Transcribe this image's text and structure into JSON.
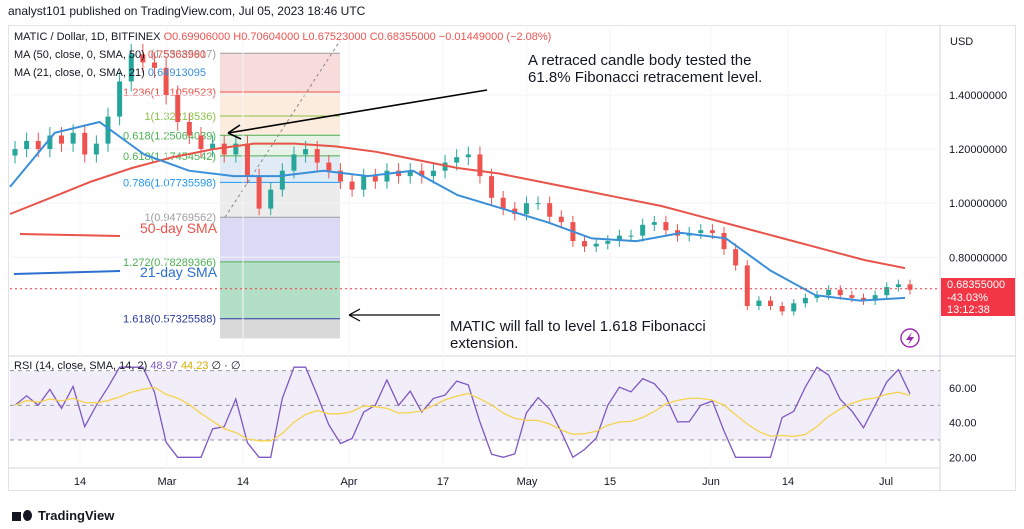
{
  "header": {
    "publisher_text": "analyst101 published on TradingView.com, Jul 05, 2023 18:46 UTC"
  },
  "legend": {
    "symbol": "MATIC / Dollar, 1D, BITFINEX",
    "ohlc": "O0.69906000 H0.70604000 L0.67523000 C0.68355000 −0.01449000 (−2.08%)",
    "ma50_label": "MA (50, close, 0, SMA, 50)",
    "ma50_value": "0.75363960",
    "ma21_label": "MA (21, close, 0, SMA, 21)",
    "ma21_value": "0.64913095",
    "rsi_label": "RSI (14, close, SMA, 14, 2)",
    "rsi_value": "48.97",
    "rsi_sma_value": "44.23",
    "rsi_extra": "∅ · ∅"
  },
  "currency": "USD",
  "price_tag": {
    "price": "0.68355000",
    "change": "-43.03%",
    "countdown": "13:12:38"
  },
  "annotations": {
    "retrace": "A retraced candle body tested the 61.8% Fibonacci retracement level.",
    "retrace_line1": "A retraced candle body tested the",
    "retrace_line2": "61.8% Fibonacci retracement level.",
    "target_line1": "MATIC will fall to level 1.618 Fibonacci",
    "target_line2": "extension.",
    "sma50": "50-day SMA",
    "sma21": "21-day SMA"
  },
  "footer": {
    "brand": "TradingView"
  },
  "colors": {
    "up": "#26a69a",
    "down": "#ef5350",
    "ma50": "#e8544a",
    "ma21": "#3a8fd9",
    "rsi": "#7e57c2",
    "rsi_sma": "#f5d34e",
    "price_tag": "#f23645"
  },
  "chart_data": {
    "type": "line",
    "title": "MATIC / Dollar, 1D, BITFINEX",
    "y_axis": {
      "ticks": [
        "1.40000000",
        "1.20000000",
        "1.00000000",
        "0.80000000",
        "0.68355000"
      ],
      "tick_values": [
        1.4,
        1.2,
        1.0,
        0.8
      ],
      "range": [
        0.45,
        1.64
      ]
    },
    "x_axis": {
      "ticks": [
        "14",
        "Mar",
        "14",
        "Apr",
        "17",
        "May",
        "15",
        "Jun",
        "14",
        "Jul"
      ]
    },
    "fibonacci": {
      "levels": [
        {
          "ratio": "1.5535",
          "label": "(1.55385917)",
          "price": 1.554
        },
        {
          "ratio": "1.236",
          "label": "1.236(1.41059523)",
          "price": 1.411
        },
        {
          "ratio": "1.000",
          "label": "1(1.32213536)",
          "price": 1.322
        },
        {
          "ratio": "0.618",
          "label": "0.618(1.25064039)",
          "price": 1.251
        },
        {
          "ratio": "0.618",
          "label": "0.618(1.17454542)",
          "price": 1.175
        },
        {
          "ratio": "0.786",
          "label": "0.786(1.07735598)",
          "price": 1.077
        },
        {
          "ratio": "1",
          "label": "1(0.94769562)",
          "price": 0.948
        },
        {
          "ratio": "1.272",
          "label": "1.272(0.78289366)",
          "price": 0.783
        },
        {
          "ratio": "1.618",
          "label": "1.618(0.57325588)",
          "price": 0.573
        }
      ]
    },
    "series": [
      {
        "name": "MA (50, close, 0, SMA, 50)",
        "values": [
          0.96,
          1.02,
          1.08,
          1.13,
          1.17,
          1.2,
          1.22,
          1.22,
          1.21,
          1.19,
          1.16,
          1.13,
          1.11,
          1.08,
          1.05,
          1.02,
          0.99,
          0.95,
          0.91,
          0.87,
          0.83,
          0.79,
          0.76
        ]
      },
      {
        "name": "MA (21, close, 0, SMA, 21)",
        "values": [
          1.06,
          1.26,
          1.3,
          1.18,
          1.12,
          1.1,
          1.1,
          1.12,
          1.1,
          1.12,
          1.03,
          0.98,
          0.93,
          0.87,
          0.86,
          0.89,
          0.87,
          0.75,
          0.66,
          0.64,
          0.65
        ]
      }
    ],
    "closes": [
      1.2,
      1.23,
      1.2,
      1.25,
      1.22,
      1.26,
      1.18,
      1.22,
      1.32,
      1.45,
      1.55,
      1.52,
      1.5,
      1.4,
      1.3,
      1.25,
      1.2,
      1.22,
      1.18,
      1.22,
      1.1,
      0.98,
      1.05,
      1.12,
      1.18,
      1.2,
      1.15,
      1.12,
      1.08,
      1.05,
      1.1,
      1.08,
      1.12,
      1.1,
      1.12,
      1.1,
      1.12,
      1.15,
      1.17,
      1.18,
      1.1,
      1.02,
      0.98,
      0.96,
      1.0,
      1.0,
      0.95,
      0.93,
      0.86,
      0.84,
      0.85,
      0.86,
      0.88,
      0.88,
      0.92,
      0.93,
      0.9,
      0.88,
      0.89,
      0.9,
      0.89,
      0.83,
      0.77,
      0.62,
      0.64,
      0.62,
      0.6,
      0.63,
      0.65,
      0.66,
      0.68,
      0.66,
      0.65,
      0.64,
      0.66,
      0.69,
      0.7,
      0.68
    ],
    "rsi": {
      "ticks": [
        "60.00",
        "40.00",
        "20.00"
      ],
      "tick_values": [
        60,
        40,
        20
      ],
      "band": [
        30,
        70
      ],
      "range": [
        15,
        75
      ]
    }
  }
}
